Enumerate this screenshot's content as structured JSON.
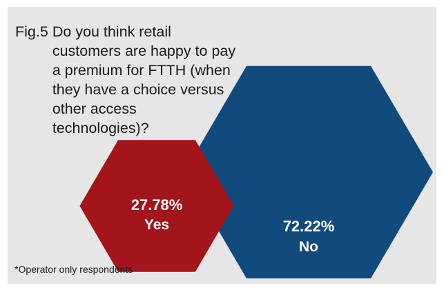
{
  "figure": {
    "fig_label": "Fig.5",
    "title": "Do you think retail customers are happy to pay a premium for FTTH (when they have a choice versus other access technologies)?",
    "footnote": "*Operator only respondents"
  },
  "colors": {
    "yes": "#a3141b",
    "no": "#114a7c",
    "background": "#e6e6e6"
  },
  "chart_data": {
    "type": "pie",
    "title": "Do you think retail customers are happy to pay a premium for FTTH (when they have a choice versus other access technologies)?",
    "categories": [
      "Yes",
      "No"
    ],
    "values": [
      27.78,
      72.22
    ],
    "value_labels": [
      "27.78%",
      "72.22%"
    ],
    "unit": "%"
  }
}
